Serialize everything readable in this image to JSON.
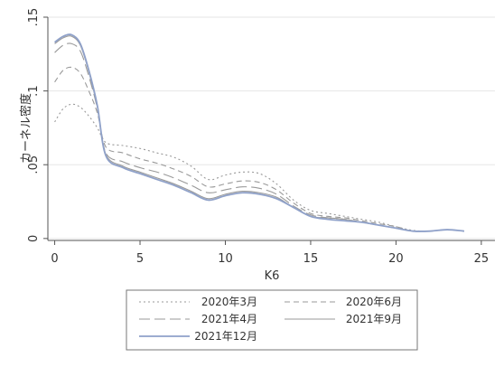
{
  "chart_data": {
    "type": "line",
    "xlabel": "K6",
    "ylabel": "カーネル密度",
    "xlim": [
      0,
      24
    ],
    "ylim": [
      0,
      0.15
    ],
    "x_ticks": [
      0,
      5,
      10,
      15,
      20,
      25
    ],
    "x_tick_labels": [
      "0",
      "5",
      "10",
      "15",
      "20",
      "25"
    ],
    "y_ticks": [
      0,
      0.05,
      0.1,
      0.15
    ],
    "y_tick_labels": [
      "0",
      ".05",
      ".1",
      ".15"
    ],
    "grid": "horizontal",
    "legend_position": "bottom",
    "x": [
      0,
      0.5,
      1,
      1.5,
      2,
      2.5,
      3,
      4,
      5,
      6,
      7,
      8,
      9,
      10,
      11,
      12,
      13,
      14,
      15,
      16,
      17,
      18,
      19,
      20,
      21,
      22,
      23,
      24
    ],
    "series": [
      {
        "name": "2020年3月",
        "color": "#999999",
        "dash": "2,3",
        "values": [
          0.079,
          0.088,
          0.091,
          0.089,
          0.083,
          0.075,
          0.065,
          0.063,
          0.061,
          0.058,
          0.055,
          0.049,
          0.04,
          0.043,
          0.045,
          0.044,
          0.037,
          0.026,
          0.019,
          0.017,
          0.015,
          0.013,
          0.011,
          0.008,
          0.0055,
          0.005,
          0.006,
          0.005
        ]
      },
      {
        "name": "2020年6月",
        "color": "#999999",
        "dash": "6,4",
        "values": [
          0.106,
          0.114,
          0.116,
          0.112,
          0.1,
          0.085,
          0.062,
          0.058,
          0.054,
          0.051,
          0.047,
          0.042,
          0.035,
          0.037,
          0.039,
          0.038,
          0.033,
          0.024,
          0.017,
          0.015,
          0.014,
          0.012,
          0.01,
          0.008,
          0.005,
          0.005,
          0.006,
          0.005
        ]
      },
      {
        "name": "2021年4月",
        "color": "#999999",
        "dash": "12,5",
        "values": [
          0.126,
          0.131,
          0.132,
          0.127,
          0.11,
          0.088,
          0.058,
          0.052,
          0.048,
          0.045,
          0.041,
          0.036,
          0.031,
          0.033,
          0.035,
          0.034,
          0.03,
          0.022,
          0.016,
          0.014,
          0.013,
          0.011,
          0.009,
          0.007,
          0.005,
          0.005,
          0.006,
          0.005
        ]
      },
      {
        "name": "2021年9月",
        "color": "#999999",
        "dash": "",
        "values": [
          0.132,
          0.136,
          0.137,
          0.131,
          0.113,
          0.089,
          0.057,
          0.049,
          0.045,
          0.041,
          0.037,
          0.032,
          0.027,
          0.03,
          0.032,
          0.031,
          0.028,
          0.021,
          0.015,
          0.014,
          0.013,
          0.011,
          0.009,
          0.007,
          0.005,
          0.005,
          0.006,
          0.005
        ]
      },
      {
        "name": "2021年12月",
        "color": "#8fa1c9",
        "dash": "",
        "values": [
          0.133,
          0.137,
          0.138,
          0.132,
          0.114,
          0.09,
          0.056,
          0.048,
          0.044,
          0.04,
          0.036,
          0.031,
          0.026,
          0.029,
          0.031,
          0.03,
          0.027,
          0.021,
          0.015,
          0.013,
          0.012,
          0.011,
          0.009,
          0.007,
          0.005,
          0.005,
          0.006,
          0.005
        ]
      }
    ]
  }
}
